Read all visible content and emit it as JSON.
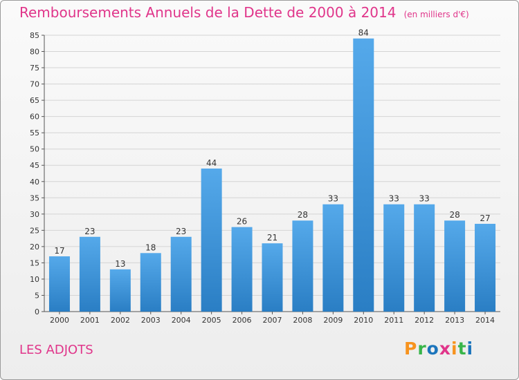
{
  "chart_data": {
    "type": "bar",
    "title": "Remboursements Annuels de la Dette de 2000 à 2014",
    "unit": "(en milliers d'€)",
    "categories": [
      "2000",
      "2001",
      "2002",
      "2003",
      "2004",
      "2005",
      "2006",
      "2007",
      "2008",
      "2009",
      "2010",
      "2011",
      "2012",
      "2013",
      "2014"
    ],
    "values": [
      17,
      23,
      13,
      18,
      23,
      44,
      26,
      21,
      28,
      33,
      84,
      33,
      33,
      28,
      27
    ],
    "ylim": [
      0,
      85
    ],
    "yticks": [
      0,
      5,
      10,
      15,
      20,
      25,
      30,
      35,
      40,
      45,
      50,
      55,
      60,
      65,
      70,
      75,
      80,
      85
    ],
    "grid": true,
    "legend": "none",
    "bar_color": "#3d94d6"
  },
  "place_name": "LES ADJOTS",
  "brand": {
    "letters": [
      "P",
      "r",
      "o",
      "x",
      "i",
      "t",
      "i"
    ],
    "colors": [
      "#f7931e",
      "#39b54a",
      "#1c75bc",
      "#e0358a",
      "#f7931e",
      "#39b54a",
      "#1c75bc"
    ]
  }
}
